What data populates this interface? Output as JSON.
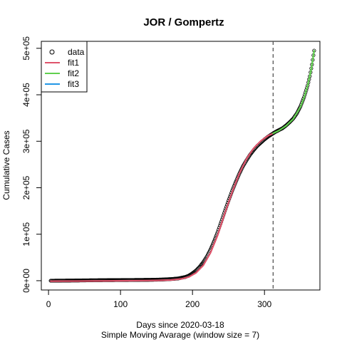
{
  "chart_data": {
    "type": "line",
    "title": "JOR / Gompertz",
    "xlabel": "Days since 2020-03-18",
    "xlabel2": "Simple Moving Avarage (window size = 7)",
    "ylabel": "Cumulative Cases",
    "xlim": [
      -10,
      377
    ],
    "ylim": [
      -20000,
      515000
    ],
    "x_ticks": [
      0,
      100,
      200,
      300
    ],
    "x_tick_labels": [
      "0",
      "100",
      "200",
      "300"
    ],
    "y_ticks": [
      0,
      100000,
      200000,
      300000,
      400000,
      500000
    ],
    "y_tick_labels": [
      "0e+00",
      "1e+05",
      "2e+05",
      "3e+05",
      "4e+05",
      "5e+05"
    ],
    "vline_x": 312,
    "legend": {
      "position": "top-left",
      "entries": [
        {
          "label": "data",
          "symbol": "circle",
          "color": "#000000"
        },
        {
          "label": "fit1",
          "symbol": "line",
          "color": "#DF536B"
        },
        {
          "label": "fit2",
          "symbol": "line",
          "color": "#61D04F"
        },
        {
          "label": "fit3",
          "symbol": "line",
          "color": "#2297E6"
        }
      ]
    },
    "data_points": [
      [
        3,
        0
      ],
      [
        20,
        200
      ],
      [
        40,
        500
      ],
      [
        60,
        900
      ],
      [
        80,
        1200
      ],
      [
        100,
        1400
      ],
      [
        120,
        1600
      ],
      [
        140,
        1900
      ],
      [
        150,
        2200
      ],
      [
        160,
        2700
      ],
      [
        170,
        3500
      ],
      [
        180,
        4800
      ],
      [
        190,
        8000
      ],
      [
        195,
        11000
      ],
      [
        200,
        16000
      ],
      [
        205,
        22000
      ],
      [
        210,
        30000
      ],
      [
        215,
        40000
      ],
      [
        220,
        52000
      ],
      [
        225,
        67000
      ],
      [
        230,
        85000
      ],
      [
        235,
        105000
      ],
      [
        240,
        127000
      ],
      [
        245,
        150000
      ],
      [
        250,
        172000
      ],
      [
        255,
        193000
      ],
      [
        260,
        212000
      ],
      [
        265,
        230000
      ],
      [
        270,
        246000
      ],
      [
        275,
        259000
      ],
      [
        280,
        271000
      ],
      [
        285,
        281000
      ],
      [
        290,
        290000
      ],
      [
        295,
        297000
      ],
      [
        300,
        304000
      ],
      [
        305,
        310000
      ],
      [
        310,
        315000
      ],
      [
        312,
        317000
      ],
      [
        315,
        320000
      ],
      [
        320,
        324000
      ],
      [
        325,
        328000
      ],
      [
        330,
        334000
      ],
      [
        335,
        341000
      ],
      [
        340,
        349000
      ],
      [
        345,
        360000
      ],
      [
        350,
        375000
      ],
      [
        355,
        395000
      ],
      [
        360,
        420000
      ],
      [
        363,
        440000
      ],
      [
        366,
        465000
      ],
      [
        369,
        495000
      ]
    ],
    "series": [
      {
        "name": "fit1",
        "color": "#DF536B",
        "x": [
          3,
          40,
          80,
          120,
          150,
          170,
          185,
          195,
          205,
          215,
          225,
          235,
          245,
          255,
          265,
          275,
          285,
          295,
          305,
          312
        ],
        "y": [
          -1000,
          -800,
          -500,
          0,
          500,
          1500,
          4000,
          8000,
          17000,
          33000,
          60000,
          98000,
          145000,
          190000,
          230000,
          262000,
          285000,
          301000,
          312000,
          317000
        ]
      },
      {
        "name": "fit2",
        "color": "#61D04F",
        "x": [
          312,
          320,
          330,
          340,
          350,
          355,
          360,
          365,
          369
        ],
        "y": [
          317000,
          323000,
          333000,
          348000,
          374000,
          394000,
          420000,
          455000,
          495000
        ]
      },
      {
        "name": "fit3",
        "color": "#2297E6",
        "x": [],
        "y": []
      }
    ]
  }
}
